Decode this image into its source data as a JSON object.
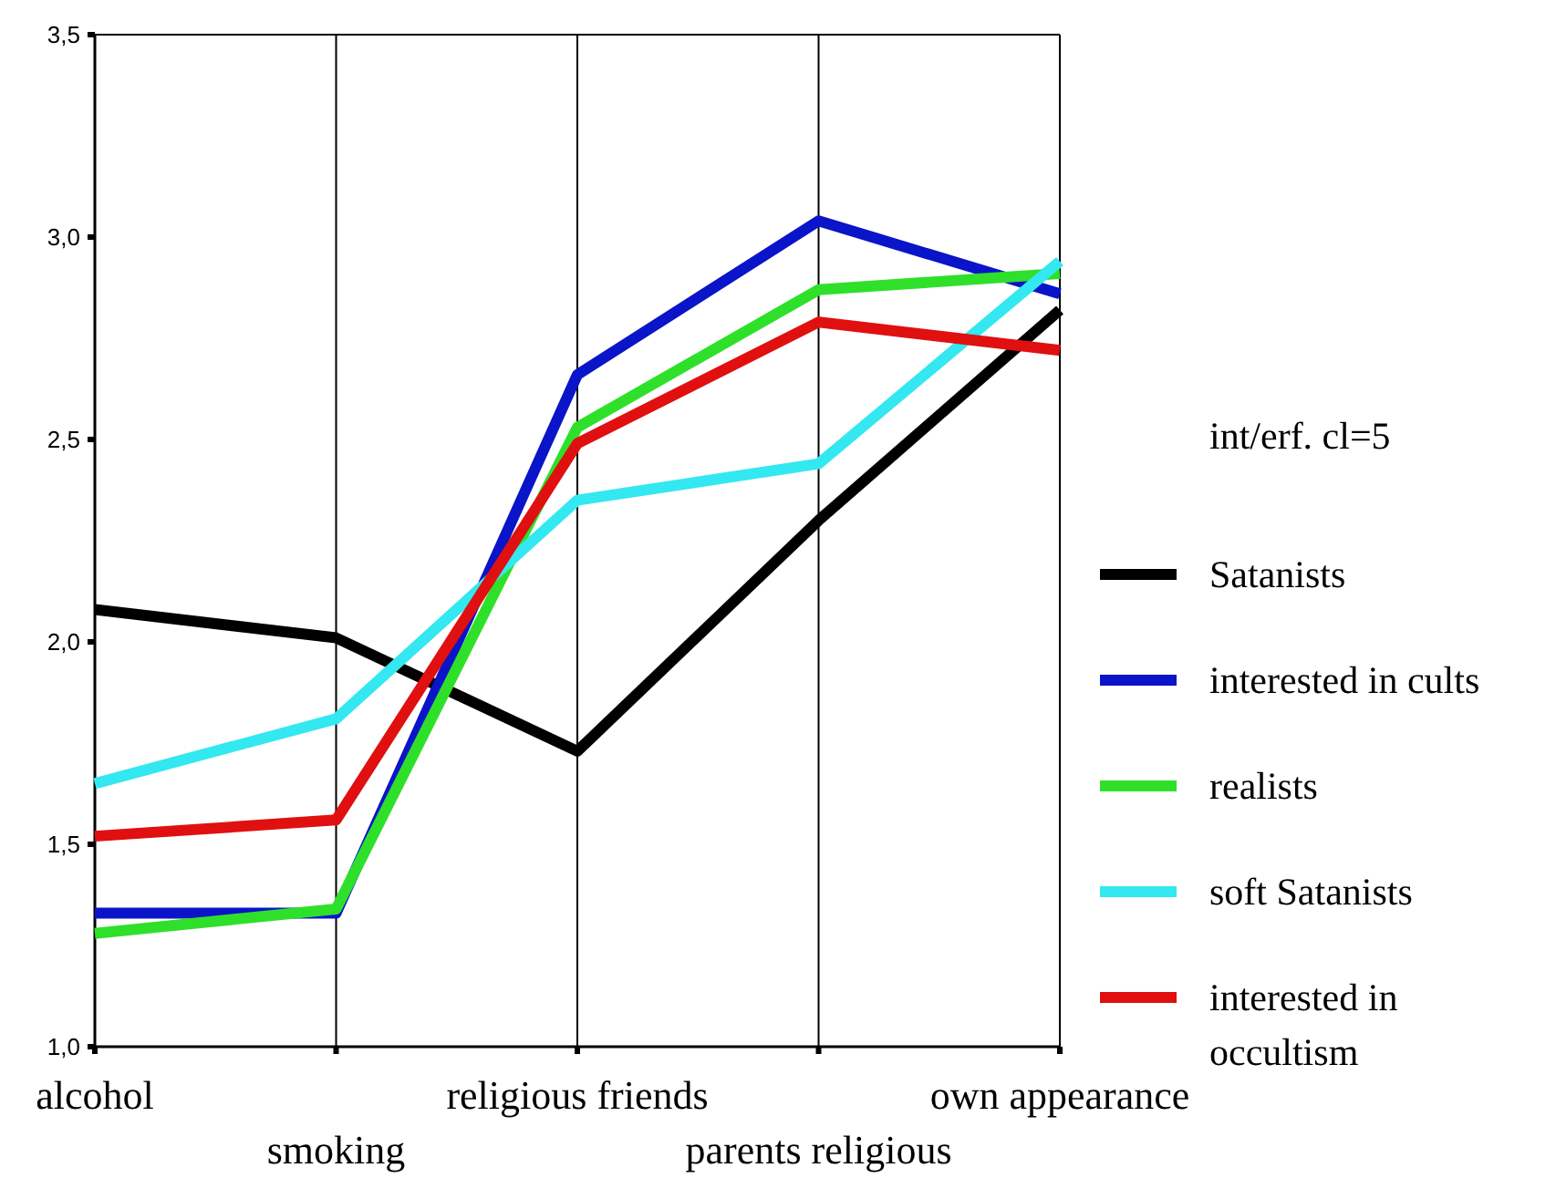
{
  "chart_data": {
    "type": "line",
    "legend_title": "int/erf. cl=5",
    "legend": "right",
    "grid": "x",
    "ylim": [
      1.0,
      3.5
    ],
    "yticks": [
      {
        "value": 1.0,
        "label": "1,0"
      },
      {
        "value": 1.5,
        "label": "1,5"
      },
      {
        "value": 2.0,
        "label": "2,0"
      },
      {
        "value": 2.5,
        "label": "2,5"
      },
      {
        "value": 3.0,
        "label": "3,0"
      },
      {
        "value": 3.5,
        "label": "3,5"
      }
    ],
    "categories": [
      "alcohol",
      "smoking",
      "religious friends",
      "parents religious",
      "own appearance"
    ],
    "series": [
      {
        "name": "Satanists",
        "color": "#000000",
        "values": [
          2.08,
          2.01,
          1.73,
          2.3,
          2.82
        ]
      },
      {
        "name": "interested in cults",
        "color": "#0a14c8",
        "values": [
          1.33,
          1.33,
          2.66,
          3.04,
          2.86
        ]
      },
      {
        "name": "realists",
        "color": "#2ee02a",
        "values": [
          1.28,
          1.34,
          2.53,
          2.87,
          2.91
        ]
      },
      {
        "name": "soft Satanists",
        "color": "#33e8f0",
        "values": [
          1.65,
          1.81,
          2.35,
          2.44,
          2.94
        ]
      },
      {
        "name": "interested in occultism",
        "color": "#e01010",
        "values": [
          1.52,
          1.56,
          2.49,
          2.79,
          2.72
        ]
      }
    ]
  }
}
